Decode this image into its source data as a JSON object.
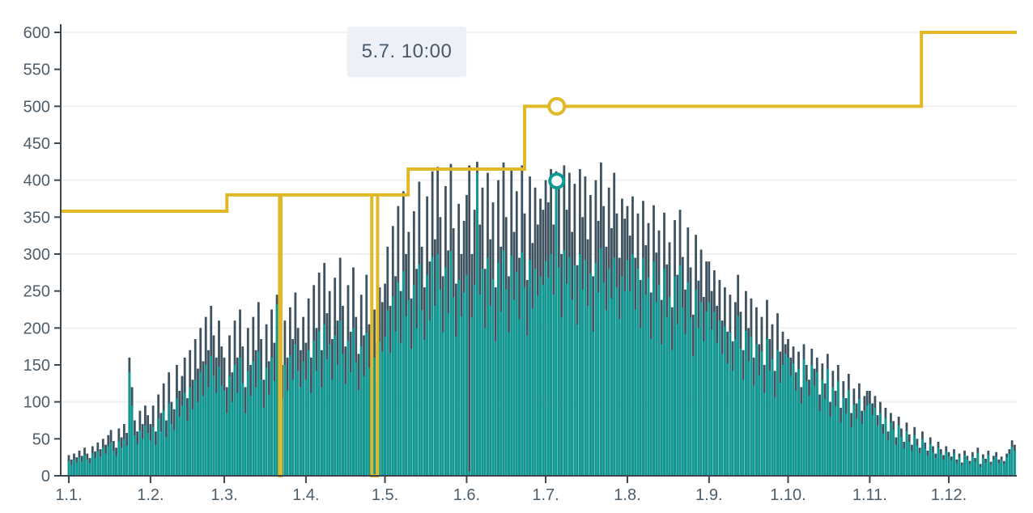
{
  "tooltip": {
    "text": "5.7. 10:00"
  },
  "colors": {
    "background": "#ffffff",
    "bar_dark": "#3e5360",
    "bar_teal": "#0d9a94",
    "limit_yellow": "#e1b928",
    "axis_line": "#3c4650",
    "tick_label": "#4e5d6a",
    "gridline": "#f0f1f3",
    "tooltip_bg": "#edf1f7",
    "tooltip_text": "#46586a",
    "marker_fill": "#ffffff"
  },
  "chart_data": {
    "type": "bar",
    "title": "",
    "xlabel": "",
    "ylabel": "",
    "ylim": [
      0,
      600
    ],
    "y_ticks": [
      0,
      50,
      100,
      150,
      200,
      250,
      300,
      350,
      400,
      450,
      500,
      550,
      600
    ],
    "gridline_values": [
      100,
      200,
      300,
      400,
      500,
      600
    ],
    "legend": "none",
    "grid": "horizontal-faint",
    "x_tick_labels": [
      "1.1.",
      "1.2.",
      "1.3.",
      "1.4.",
      "1.5.",
      "1.6.",
      "1.7.",
      "1.8.",
      "1.9.",
      "1.10.",
      "1.11.",
      "1.12."
    ],
    "month_start_days": [
      0,
      31,
      59,
      90,
      120,
      151,
      181,
      212,
      243,
      273,
      304,
      334
    ],
    "days_total": 360,
    "series": [
      {
        "name": "daily-peak-dark",
        "color": "#3e5360",
        "values": [
          28,
          22,
          30,
          25,
          34,
          27,
          38,
          30,
          24,
          40,
          33,
          45,
          36,
          50,
          42,
          55,
          62,
          47,
          38,
          64,
          52,
          70,
          58,
          160,
          120,
          75,
          60,
          88,
          70,
          95,
          82,
          70,
          95,
          60,
          110,
          85,
          125,
          75,
          140,
          100,
          90,
          150,
          115,
          135,
          160,
          105,
          170,
          130,
          185,
          145,
          200,
          155,
          215,
          170,
          230,
          190,
          160,
          210,
          175,
          160,
          120,
          190,
          140,
          210,
          160,
          225,
          175,
          120,
          200,
          150,
          215,
          170,
          235,
          185,
          130,
          205,
          155,
          225,
          180,
          245,
          238,
          150,
          210,
          160,
          228,
          185,
          248,
          200,
          170,
          215,
          180,
          240,
          160,
          258,
          200,
          275,
          170,
          288,
          220,
          250,
          185,
          268,
          210,
          295,
          230,
          175,
          258,
          195,
          282,
          215,
          165,
          245,
          190,
          272,
          205,
          292,
          225,
          180,
          255,
          235,
          260,
          310,
          230,
          338,
          270,
          365,
          250,
          385,
          300,
          330,
          240,
          358,
          280,
          398,
          310,
          255,
          378,
          290,
          412,
          320,
          418,
          350,
          270,
          392,
          305,
          422,
          335,
          260,
          368,
          300,
          345,
          380,
          420,
          300,
          360,
          425,
          340,
          390,
          280,
          410,
          320,
          370,
          255,
          400,
          310,
          424,
          350,
          270,
          415,
          330,
          385,
          295,
          420,
          355,
          265,
          405,
          315,
          390,
          340,
          375,
          360,
          400,
          370,
          415,
          340,
          412,
          390,
          300,
          420,
          360,
          410,
          330,
          395,
          285,
          415,
          350,
          405,
          320,
          380,
          270,
          400,
          345,
          424,
          365,
          310,
          390,
          335,
          410,
          355,
          295,
          375,
          348,
          365,
          325,
          378,
          295,
          355,
          265,
          372,
          312,
          342,
          248,
          366,
          302,
          332,
          238,
          356,
          286,
          316,
          228,
          346,
          272,
          360,
          296,
          252,
          336,
          282,
          218,
          326,
          264,
          306,
          242,
          290,
          290,
          250,
          278,
          230,
          265,
          210,
          255,
          195,
          245,
          182,
          235,
          272,
          222,
          170,
          250,
          200,
          240,
          160,
          228,
          178,
          215,
          150,
          238,
          185,
          205,
          142,
          220,
          168,
          195,
          178,
          185,
          160,
          175,
          140,
          168,
          120,
          178,
          150,
          130,
          172,
          145,
          160,
          110,
          152,
          125,
          165,
          100,
          142,
          115,
          150,
          92,
          128,
          105,
          138,
          85,
          118,
          98,
          125,
          88,
          108,
          115,
          115,
          98,
          108,
          82,
          100,
          70,
          92,
          60,
          85,
          74,
          52,
          80,
          64,
          46,
          72,
          56,
          42,
          66,
          50,
          38,
          60,
          45,
          34,
          52,
          40,
          30,
          46,
          36,
          28,
          40,
          32,
          26,
          36,
          22,
          30,
          18,
          34,
          27,
          20,
          32,
          24,
          38,
          16,
          29,
          23,
          34,
          19,
          27,
          32,
          22,
          26,
          20,
          30,
          36,
          48,
          42
        ]
      },
      {
        "name": "daily-value-teal",
        "color": "#0d9a94",
        "values": [
          20,
          15,
          22,
          18,
          25,
          19,
          28,
          22,
          17,
          30,
          24,
          33,
          26,
          38,
          30,
          40,
          45,
          34,
          27,
          47,
          38,
          50,
          41,
          140,
          95,
          55,
          43,
          62,
          50,
          68,
          58,
          48,
          66,
          42,
          78,
          60,
          88,
          52,
          98,
          70,
          62,
          105,
          80,
          95,
          112,
          74,
          120,
          90,
          130,
          100,
          140,
          108,
          150,
          120,
          162,
          135,
          112,
          148,
          122,
          115,
          85,
          135,
          100,
          150,
          112,
          160,
          125,
          85,
          142,
          108,
          155,
          120,
          168,
          130,
          92,
          146,
          110,
          160,
          128,
          232,
          224,
          105,
          150,
          115,
          163,
          130,
          178,
          142,
          120,
          155,
          130,
          170,
          112,
          183,
          142,
          196,
          120,
          205,
          158,
          178,
          130,
          190,
          150,
          210,
          165,
          124,
          183,
          140,
          200,
          154,
          116,
          175,
          135,
          194,
          146,
          208,
          160,
          128,
          182,
          168,
          188,
          224,
          166,
          243,
          195,
          262,
          180,
          277,
          216,
          238,
          172,
          258,
          200,
          286,
          224,
          184,
          272,
          210,
          296,
          230,
          300,
          252,
          194,
          282,
          220,
          304,
          242,
          188,
          265,
          216,
          248,
          272,
          6,
          215,
          258,
          410,
          245,
          280,
          200,
          295,
          230,
          266,
          182,
          288,
          222,
          305,
          252,
          194,
          298,
          238,
          276,
          212,
          302,
          255,
          190,
          292,
          226,
          280,
          244,
          270,
          258,
          290,
          268,
          300,
          245,
          399,
          282,
          215,
          305,
          260,
          296,
          238,
          285,
          205,
          300,
          252,
          292,
          230,
          274,
          195,
          288,
          248,
          308,
          262,
          224,
          280,
          240,
          295,
          255,
          212,
          270,
          250,
          292,
          250,
          300,
          225,
          280,
          200,
          295,
          245,
          268,
          185,
          290,
          235,
          258,
          178,
          280,
          215,
          242,
          170,
          270,
          205,
          285,
          228,
          192,
          262,
          214,
          162,
          252,
          200,
          235,
          182,
          222,
          235,
          198,
          222,
          180,
          210,
          165,
          202,
          152,
          194,
          142,
          185,
          216,
          172,
          130,
          196,
          155,
          188,
          122,
          178,
          136,
          168,
          112,
          185,
          142,
          158,
          106,
          170,
          126,
          150,
          165,
          160,
          135,
          152,
          115,
          145,
          98,
          158,
          128,
          108,
          150,
          122,
          140,
          88,
          130,
          104,
          145,
          80,
          120,
          94,
          128,
          72,
          106,
          84,
          116,
          66,
          96,
          78,
          104,
          70,
          88,
          95,
          98,
          82,
          92,
          68,
          85,
          57,
          78,
          48,
          72,
          62,
          42,
          68,
          53,
          37,
          60,
          46,
          34,
          55,
          41,
          30,
          50,
          37,
          27,
          43,
          32,
          24,
          38,
          29,
          22,
          33,
          26,
          21,
          30,
          17,
          25,
          14,
          28,
          22,
          16,
          26,
          19,
          31,
          12,
          24,
          18,
          28,
          15,
          22,
          26,
          17,
          21,
          16,
          25,
          30,
          39,
          34
        ]
      },
      {
        "name": "limit-step-line",
        "type": "step",
        "color": "#e1b928",
        "steps": [
          {
            "from_day": 0,
            "value": 358
          },
          {
            "from_day": 60,
            "value": 380
          },
          {
            "from_day": 128.8,
            "value": 415
          },
          {
            "from_day": 173,
            "value": 500
          },
          {
            "from_day": 323.6,
            "value": 600
          }
        ],
        "drops_to_zero": [
          {
            "day": 80,
            "span_days": 0.5
          },
          {
            "day": 115,
            "span_days": 2.2
          }
        ],
        "end_day": 359.8
      }
    ],
    "markers": [
      {
        "series": "limit-step-line",
        "day": 185.2,
        "value": 500
      },
      {
        "series": "daily-value-teal",
        "day": 185.2,
        "value": 399
      }
    ]
  }
}
